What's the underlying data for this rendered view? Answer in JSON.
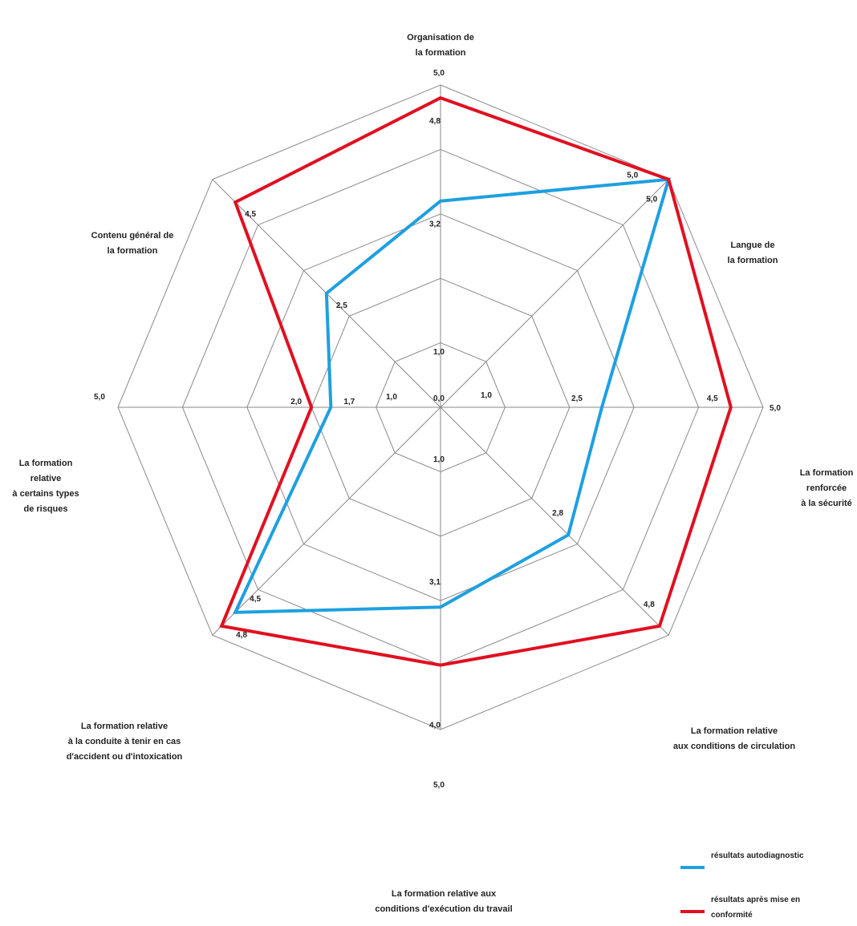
{
  "chart_data": {
    "type": "radar",
    "scale_max": 5.0,
    "rings": 5,
    "ring_labels": [
      "0,0",
      "1,0",
      "2,5",
      "5,0"
    ],
    "categories": [
      "Organisation de\nla formation",
      "Langue de\nla formation",
      "La formation\nrenforcée\nà la sécurité",
      "La formation relative\naux conditions de circulation",
      "La formation relative aux\nconditions d'exécution du travail",
      "La formation relative\nà la conduite à tenir en cas\nd'accident ou d'intoxication",
      "La formation\nrelative\nà certains types\nde risques",
      "Contenu général de\nla formation"
    ],
    "series": [
      {
        "name": "résultats autodiagnostic",
        "color": "#1ea0e0",
        "values": [
          3.2,
          5.0,
          2.5,
          2.8,
          3.1,
          4.5,
          1.7,
          2.5
        ],
        "labels": [
          "3,2",
          "5,0",
          "2,5",
          "2,8",
          "3,1",
          "4,5",
          "1,7",
          "2,5"
        ]
      },
      {
        "name": "résultats après mise en\nconformité",
        "color": "#e01020",
        "values": [
          4.8,
          5.0,
          4.5,
          4.8,
          4.0,
          4.8,
          2.0,
          4.5
        ],
        "labels": [
          "4,8",
          "5,0",
          "4,5",
          "4,8",
          "4,0",
          "4,8",
          "2,0",
          "4,5"
        ]
      }
    ],
    "axis_texts": {
      "top_max": "5,0",
      "right_max": "5,0",
      "left_max": "5,0",
      "bottom_max": "5,0",
      "center": "0,0",
      "up_1": "1,0",
      "right_1": "1,0",
      "left_1": "1,0",
      "down_1": "1,0"
    },
    "legend_position": "bottom-right"
  }
}
